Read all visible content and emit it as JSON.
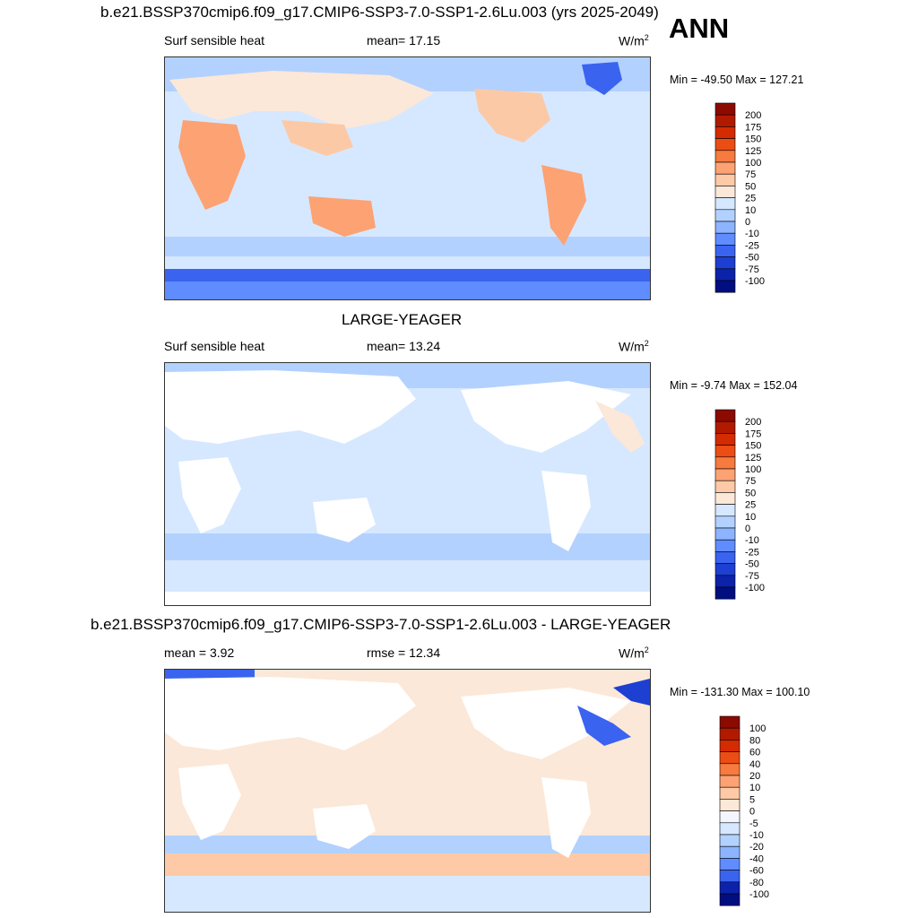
{
  "season": "ANN",
  "units_base": "W/m",
  "units_exp": "2",
  "chart_data": [
    {
      "type": "heatmap",
      "title": "b.e21.BSSP370cmip6.f09_g17.CMIP6-SSP3-7.0-SSP1-2.6Lu.003 (yrs 2025-2049)",
      "left_label": "Surf sensible heat",
      "center_label": "mean=  17.15",
      "minmax": "Min = -49.50 Max = 127.21",
      "levels": [
        "200",
        "175",
        "150",
        "125",
        "100",
        "75",
        "50",
        "25",
        "10",
        "0",
        "-10",
        "-25",
        "-50",
        "-75",
        "-100"
      ],
      "colors": [
        "#8c0a00",
        "#b21a00",
        "#d42b00",
        "#eb4d14",
        "#f77a3f",
        "#fca273",
        "#fdc9a6",
        "#fce8d8",
        "#d6e8ff",
        "#b3d1ff",
        "#8cb4ff",
        "#5f8cff",
        "#3a63ef",
        "#1d3fd2",
        "#0c22aa",
        "#000e80"
      ]
    },
    {
      "type": "heatmap",
      "title": "LARGE-YEAGER",
      "left_label": "Surf sensible heat",
      "center_label": "mean=  13.24",
      "minmax": "Min =  -9.74 Max = 152.04",
      "levels": [
        "200",
        "175",
        "150",
        "125",
        "100",
        "75",
        "50",
        "25",
        "10",
        "0",
        "-10",
        "-25",
        "-50",
        "-75",
        "-100"
      ],
      "colors": [
        "#8c0a00",
        "#b21a00",
        "#d42b00",
        "#eb4d14",
        "#f77a3f",
        "#fca273",
        "#fdc9a6",
        "#fce8d8",
        "#d6e8ff",
        "#b3d1ff",
        "#8cb4ff",
        "#5f8cff",
        "#3a63ef",
        "#1d3fd2",
        "#0c22aa",
        "#000e80"
      ]
    },
    {
      "type": "heatmap",
      "title": "b.e21.BSSP370cmip6.f09_g17.CMIP6-SSP3-7.0-SSP1-2.6Lu.003 - LARGE-YEAGER",
      "left_label": "mean =   3.92",
      "center_label": "rmse =  12.34",
      "minmax": "Min = -131.30 Max = 100.10",
      "levels": [
        "100",
        "80",
        "60",
        "40",
        "20",
        "10",
        "5",
        "0",
        "-5",
        "-10",
        "-20",
        "-40",
        "-60",
        "-80",
        "-100"
      ],
      "colors": [
        "#8c0a00",
        "#b21a00",
        "#d42b00",
        "#eb4d14",
        "#f77a3f",
        "#fca273",
        "#fdc9a6",
        "#fce8d8",
        "#f4f6ff",
        "#d6e8ff",
        "#b3d1ff",
        "#8cb4ff",
        "#5f8cff",
        "#3a63ef",
        "#0c22aa",
        "#000e80"
      ]
    }
  ]
}
